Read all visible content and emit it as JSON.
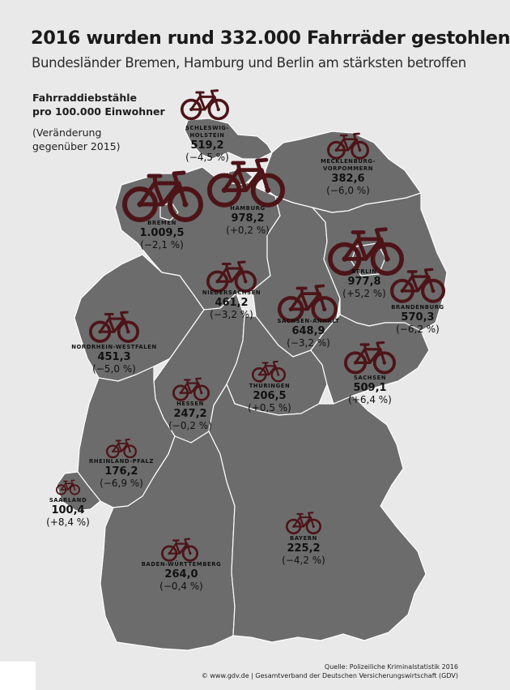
{
  "title": "2016 wurden rund 332.000 Fahrräder gestohlen",
  "subtitle": "Bundesländer Bremen, Hamburg und Berlin am stärksten betroffen",
  "legend": {
    "heading_line1": "Fahrraddiebstähle",
    "heading_line2": "pro 100.000 Einwohner",
    "note_line1": "(Veränderung",
    "note_line2": "gegenüber 2015)"
  },
  "colors": {
    "map_fill": "#6c6c6c",
    "border": "#ffffff",
    "bike": "#4d1418",
    "background": "#e9e9e9"
  },
  "icon": "bicycle-icon",
  "states": [
    {
      "name": "SCHLESWIG-HOLSTEIN",
      "name_line1": "SCHLESWIG-",
      "name_line2": "HOLSTEIN",
      "value": 519.2,
      "value_text": "519,2",
      "change_text": "(−4,5 %)"
    },
    {
      "name": "MECKLENBURG-VORPOMMERN",
      "name_line1": "MECKLENBURG-",
      "name_line2": "VORPOMMERN",
      "value": 382.6,
      "value_text": "382,6",
      "change_text": "(−6,0 %)"
    },
    {
      "name": "HAMBURG",
      "name_line1": "HAMBURG",
      "name_line2": "",
      "value": 978.2,
      "value_text": "978,2",
      "change_text": "(+0,2 %)"
    },
    {
      "name": "BREMEN",
      "name_line1": "BREMEN",
      "name_line2": "",
      "value": 1009.5,
      "value_text": "1.009,5",
      "change_text": "(−2,1 %)"
    },
    {
      "name": "BERLIN",
      "name_line1": "BERLIN",
      "name_line2": "",
      "value": 977.8,
      "value_text": "977,8",
      "change_text": "(+5,2 %)"
    },
    {
      "name": "NIEDERSACHSEN",
      "name_line1": "NIEDERSACHSEN",
      "name_line2": "",
      "value": 461.2,
      "value_text": "461,2",
      "change_text": "(−3,2 %)"
    },
    {
      "name": "BRANDENBURG",
      "name_line1": "BRANDENBURG",
      "name_line2": "",
      "value": 570.3,
      "value_text": "570,3",
      "change_text": "(−6,2 %)"
    },
    {
      "name": "SACHSEN-ANHALT",
      "name_line1": "SACHSEN-ANHALT",
      "name_line2": "",
      "value": 648.9,
      "value_text": "648,9",
      "change_text": "(−3,2 %)"
    },
    {
      "name": "NORDRHEIN-WESTFALEN",
      "name_line1": "NORDRHEIN-WESTFALEN",
      "name_line2": "",
      "value": 451.3,
      "value_text": "451,3",
      "change_text": "(−5,0 %)"
    },
    {
      "name": "SACHSEN",
      "name_line1": "SACHSEN",
      "name_line2": "",
      "value": 509.1,
      "value_text": "509,1",
      "change_text": "(+6,4 %)"
    },
    {
      "name": "THÜRINGEN",
      "name_line1": "THÜRINGEN",
      "name_line2": "",
      "value": 206.5,
      "value_text": "206,5",
      "change_text": "(+0,5 %)"
    },
    {
      "name": "HESSEN",
      "name_line1": "HESSEN",
      "name_line2": "",
      "value": 247.2,
      "value_text": "247,2",
      "change_text": "(−0,2 %)"
    },
    {
      "name": "RHEINLAND-PFALZ",
      "name_line1": "RHEINLAND-PFALZ",
      "name_line2": "",
      "value": 176.2,
      "value_text": "176,2",
      "change_text": "(−6,9 %)"
    },
    {
      "name": "SAARLAND",
      "name_line1": "SAARLAND",
      "name_line2": "",
      "value": 100.4,
      "value_text": "100,4",
      "change_text": "(+8,4 %)"
    },
    {
      "name": "BAYERN",
      "name_line1": "BAYERN",
      "name_line2": "",
      "value": 225.2,
      "value_text": "225,2",
      "change_text": "(−4,2 %)"
    },
    {
      "name": "BADEN-WÜRTTEMBERG",
      "name_line1": "BADEN-WÜRTTEMBERG",
      "name_line2": "",
      "value": 264.0,
      "value_text": "264,0",
      "change_text": "(−0,4 %)"
    }
  ],
  "source_line1": "Quelle: Polizeiliche Kriminalstatistik 2016",
  "source_line2": "© www.gdv.de | Gesamtverband der Deutschen Versicherungswirtschaft (GDV)"
}
